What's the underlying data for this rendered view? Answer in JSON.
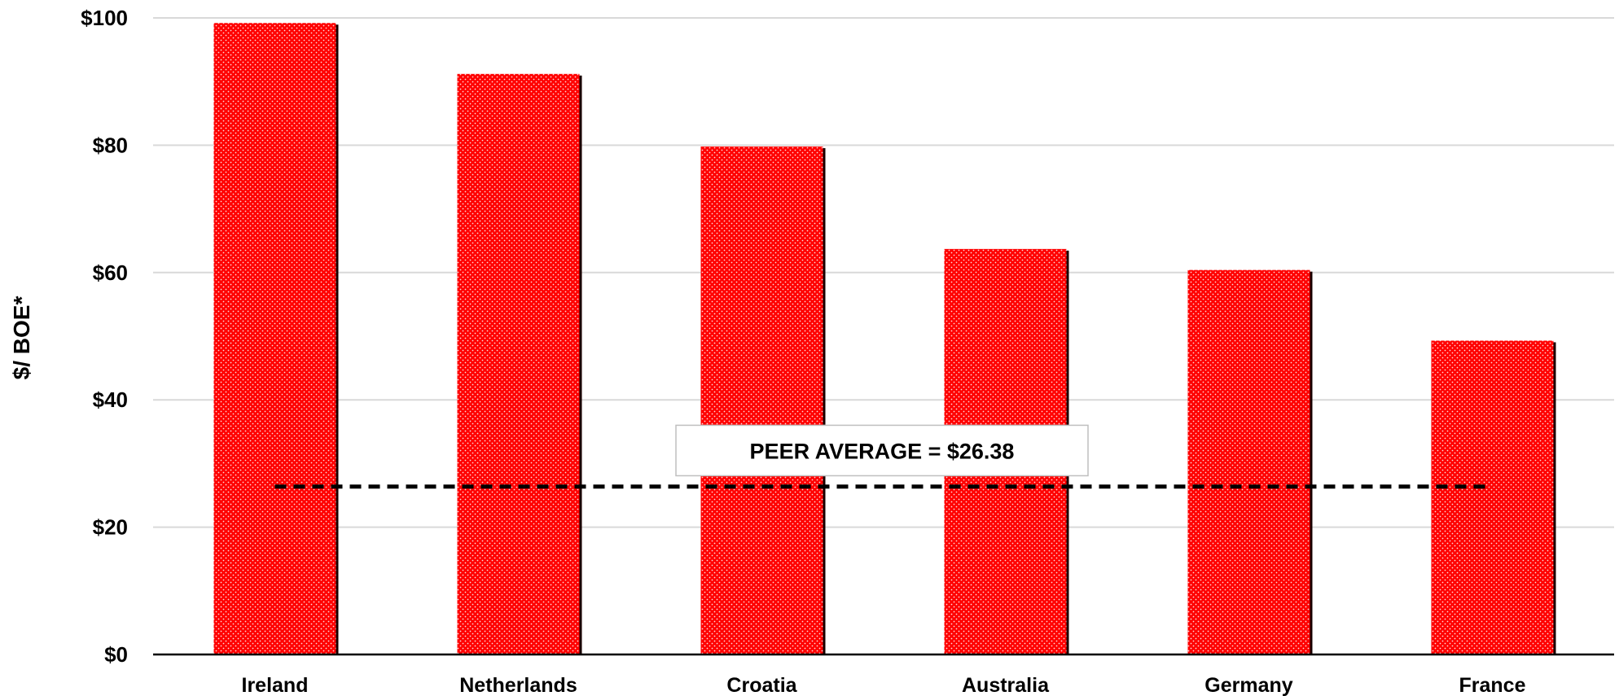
{
  "chart_data": {
    "type": "bar",
    "title": "",
    "xlabel": "",
    "ylabel": "$/ BOE*",
    "categories": [
      "Ireland",
      "Netherlands",
      "Croatia",
      "Australia",
      "Germany",
      "France"
    ],
    "values": [
      99.2,
      91.2,
      79.8,
      63.7,
      60.4,
      49.3
    ],
    "ylim": [
      0,
      100
    ],
    "yticks": [
      0,
      20,
      40,
      60,
      80,
      100
    ],
    "ytick_labels": [
      "$0",
      "$20",
      "$40",
      "$60",
      "$80",
      "$100"
    ],
    "grid": true,
    "legend": "none",
    "bar_color": "#ff0000",
    "reference_line": {
      "value": 26.38,
      "label": "PEER AVERAGE = $26.38",
      "style": "dashed"
    }
  }
}
